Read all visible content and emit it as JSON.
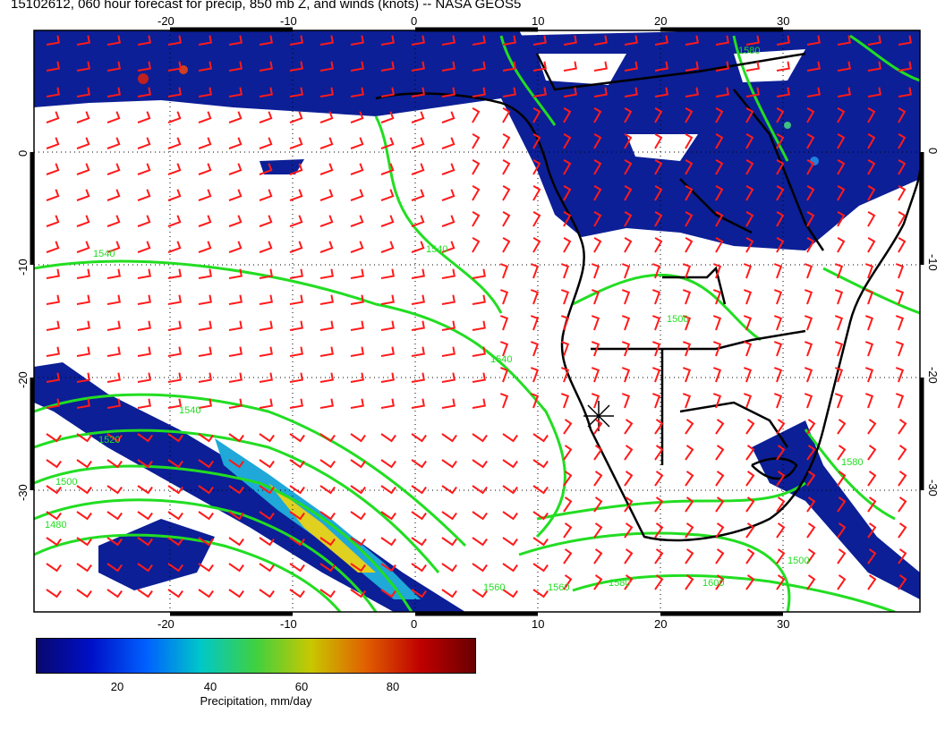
{
  "title": "15102612, 060 hour forecast for precip, 850 mb Z, and winds (knots) -- NASA GEOS5",
  "map": {
    "lon_ticks": [
      "-20",
      "-10",
      "0",
      "10",
      "20",
      "30"
    ],
    "lat_ticks": [
      "0",
      "-10",
      "-20",
      "-30"
    ],
    "contour_labels": [
      "1540",
      "1520",
      "1500",
      "1480",
      "1560",
      "1580",
      "1600",
      "1560",
      "1540",
      "1540",
      "1560",
      "1580",
      "1600",
      "1500",
      "1540",
      "1520"
    ],
    "colors": {
      "precip_dark": "#0a1a8a",
      "precip_mid": "#1a3fd0",
      "contour": "#22dd22",
      "barb": "#ff0000",
      "coast": "#000000"
    }
  },
  "colorbar": {
    "labels": [
      "20",
      "40",
      "60",
      "80"
    ],
    "title": "Precipitation, mm/day",
    "colors": [
      "#08086e",
      "#0010c8",
      "#0060ff",
      "#00c8c8",
      "#40d040",
      "#c8c800",
      "#e06000",
      "#c00000",
      "#6a0000"
    ]
  }
}
